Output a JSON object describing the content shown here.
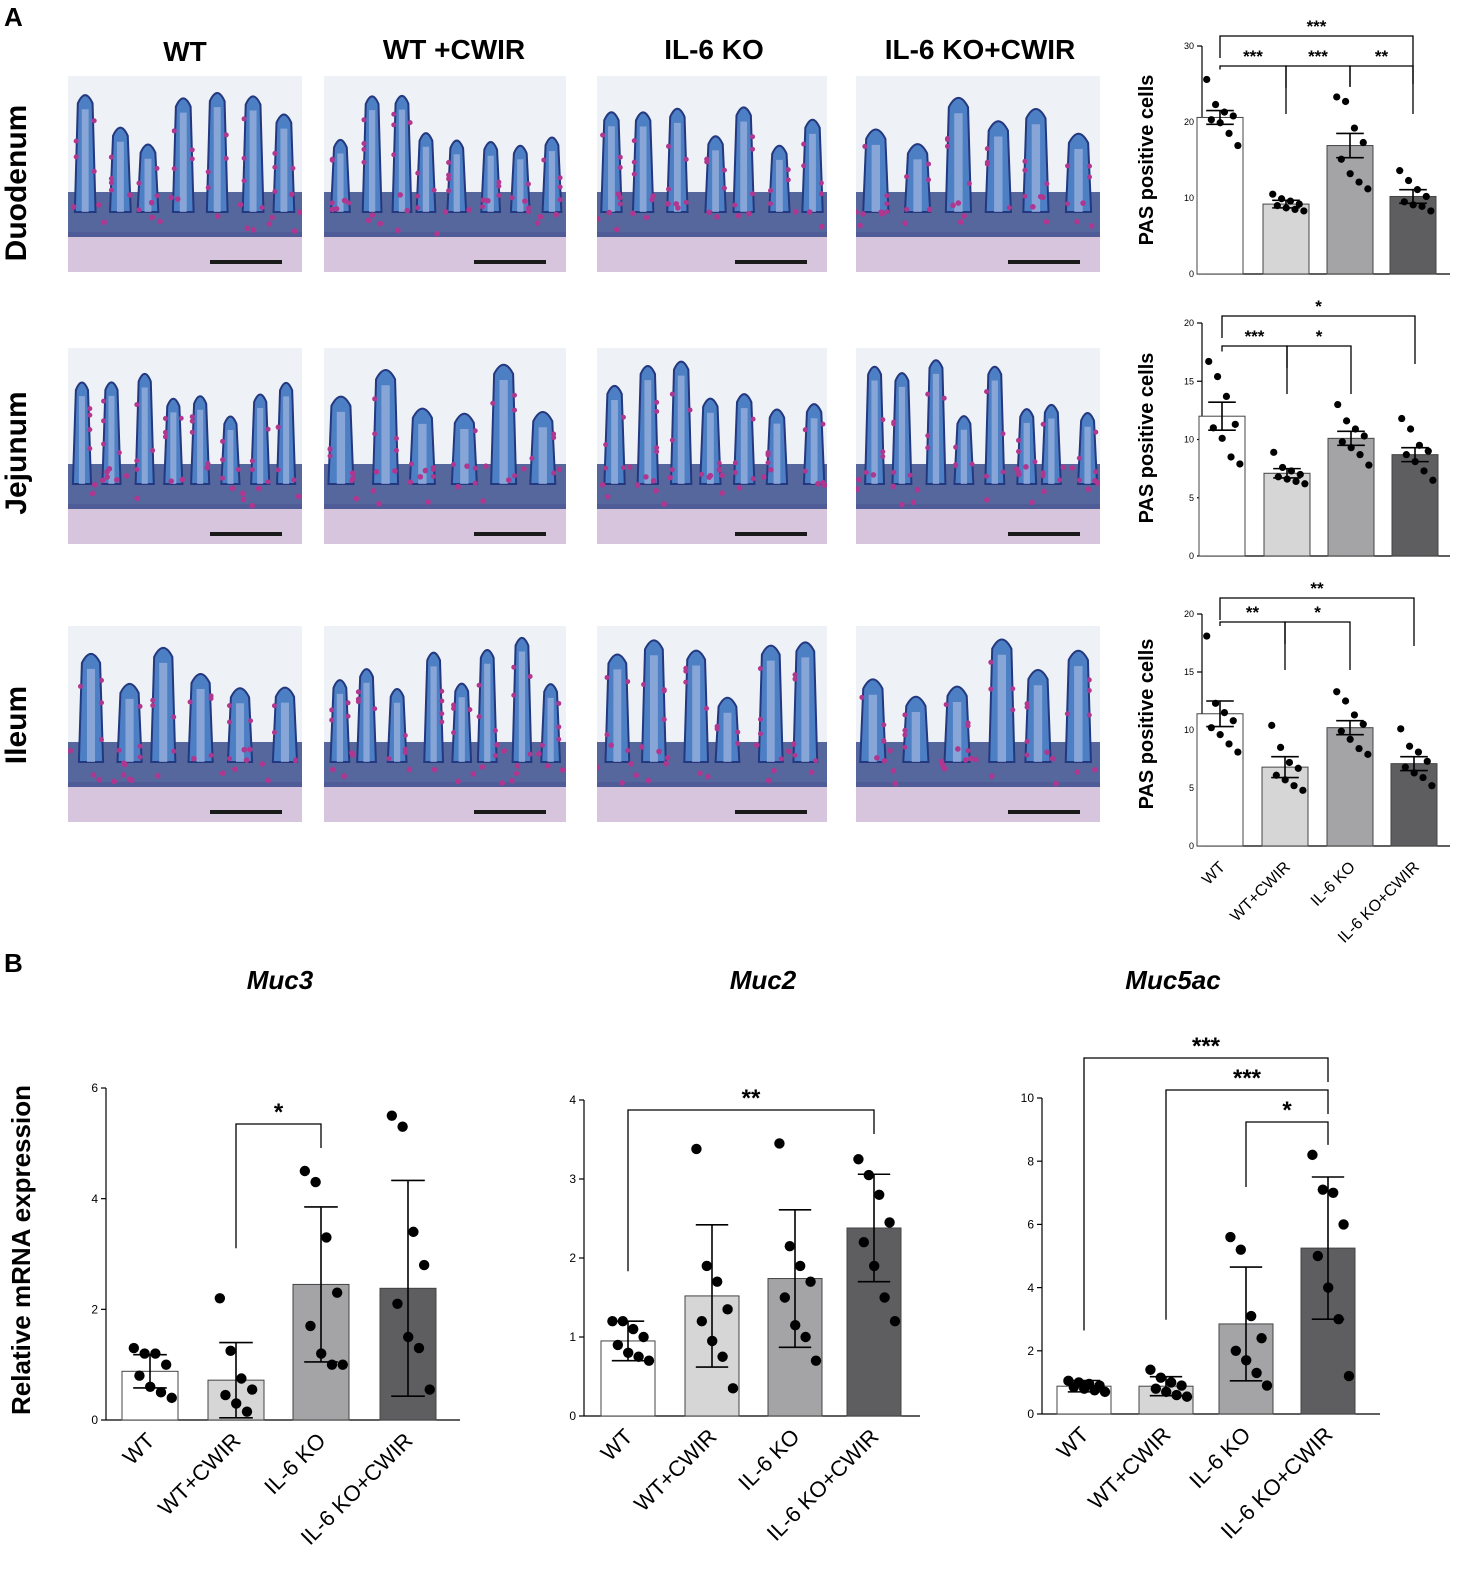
{
  "panel_labels": [
    "A",
    "B"
  ],
  "histology": {
    "columns": [
      "WT",
      "WT +CWIR",
      "IL-6 KO",
      "IL-6 KO+CWIR"
    ],
    "rows": [
      "Duodenum",
      "Jejunum",
      "Ileum"
    ],
    "colors": {
      "background": "#eef1f6",
      "tissue_blue": "#4d7fc4",
      "tissue_dark": "#23387f",
      "goblet_magenta": "#b0378f",
      "lamina": "#c8a9cf"
    }
  },
  "chart_data": [
    {
      "type": "bar",
      "panel": "A",
      "tissue": "Duodenum",
      "ylabel": "PAS positive cells",
      "ylim": [
        0,
        30
      ],
      "yticks": [
        0,
        10,
        20,
        30
      ],
      "categories": [
        "WT",
        "WT+CWIR",
        "IL-6 KO",
        "IL-6 KO+CWIR"
      ],
      "values": [
        20.6,
        9.2,
        16.9,
        10.2
      ],
      "errors": [
        0.9,
        0.5,
        1.6,
        0.9
      ],
      "error_type": "SEM",
      "points": [
        [
          25.6,
          22.3,
          21.3,
          20.8,
          20.3,
          19.9,
          18.5,
          16.9
        ],
        [
          10.5,
          9.9,
          9.6,
          9.2,
          9.0,
          8.7,
          8.5,
          8.3
        ],
        [
          23.3,
          22.7,
          19.2,
          17.3,
          15.1,
          13.2,
          12.1,
          11.2
        ],
        [
          13.6,
          12.3,
          11.1,
          10.2,
          9.5,
          9.1,
          8.9,
          8.3
        ]
      ],
      "significance": [
        {
          "pair": [
            0,
            3
          ],
          "label": "***"
        },
        {
          "pair": [
            0,
            1
          ],
          "label": "***"
        },
        {
          "pair": [
            1,
            2
          ],
          "label": "***"
        },
        {
          "pair": [
            2,
            3
          ],
          "label": "**"
        }
      ]
    },
    {
      "type": "bar",
      "panel": "A",
      "tissue": "Jejunum",
      "ylabel": "PAS positive cells",
      "ylim": [
        0,
        20
      ],
      "yticks": [
        0,
        5,
        10,
        15,
        20
      ],
      "categories": [
        "WT",
        "WT+CWIR",
        "IL-6 KO",
        "IL-6 KO+CWIR"
      ],
      "values": [
        12.0,
        7.1,
        10.1,
        8.7
      ],
      "errors": [
        1.2,
        0.4,
        0.6,
        0.6
      ],
      "error_type": "SEM",
      "points": [
        [
          16.7,
          15.4,
          13.7,
          11.3,
          11.0,
          10.1,
          8.5,
          7.9
        ],
        [
          8.9,
          7.6,
          7.3,
          7.0,
          6.8,
          6.6,
          6.4,
          6.2
        ],
        [
          13.0,
          11.6,
          10.9,
          10.3,
          9.8,
          9.3,
          8.7,
          7.8
        ],
        [
          11.8,
          10.9,
          9.5,
          9.0,
          8.7,
          8.1,
          7.3,
          6.5
        ]
      ],
      "significance": [
        {
          "pair": [
            0,
            3
          ],
          "label": "*"
        },
        {
          "pair": [
            0,
            1
          ],
          "label": "***"
        },
        {
          "pair": [
            1,
            2
          ],
          "label": "*"
        }
      ]
    },
    {
      "type": "bar",
      "panel": "A",
      "tissue": "Ileum",
      "ylabel": "PAS positive cells",
      "ylim": [
        0,
        20
      ],
      "yticks": [
        0,
        5,
        10,
        15,
        20
      ],
      "categories": [
        "WT",
        "WT+CWIR",
        "IL-6 KO",
        "IL-6 KO+CWIR"
      ],
      "values": [
        11.4,
        6.8,
        10.2,
        7.1
      ],
      "errors": [
        1.1,
        0.9,
        0.6,
        0.6
      ],
      "error_type": "SEM",
      "points": [
        [
          18.1,
          12.3,
          11.5,
          10.8,
          10.2,
          9.6,
          8.8,
          8.1
        ],
        [
          10.4,
          8.5,
          7.2,
          6.7,
          6.1,
          5.7,
          5.2,
          4.8
        ],
        [
          13.3,
          12.5,
          11.3,
          10.5,
          9.9,
          9.2,
          8.4,
          7.9
        ],
        [
          10.1,
          8.6,
          8.1,
          7.3,
          6.8,
          6.3,
          5.9,
          5.2
        ]
      ],
      "significance": [
        {
          "pair": [
            0,
            3
          ],
          "label": "**"
        },
        {
          "pair": [
            0,
            1
          ],
          "label": "**"
        },
        {
          "pair": [
            1,
            2
          ],
          "label": "*"
        }
      ]
    },
    {
      "type": "bar",
      "panel": "B",
      "title": "Muc3",
      "ylabel": "Relative mRNA expression",
      "ylim": [
        0,
        6
      ],
      "yticks": [
        0,
        2,
        4,
        6
      ],
      "categories": [
        "WT",
        "WT+CWIR",
        "IL-6 KO",
        "IL-6 KO+CWIR"
      ],
      "values": [
        0.88,
        0.72,
        2.45,
        2.38
      ],
      "errors": [
        0.3,
        0.68,
        1.4,
        1.95
      ],
      "error_type": "SD",
      "points": [
        [
          1.3,
          1.2,
          1.2,
          1.0,
          0.8,
          0.6,
          0.5,
          0.4
        ],
        [
          2.2,
          1.25,
          0.75,
          0.55,
          0.45,
          0.3,
          0.15
        ],
        [
          4.5,
          4.3,
          3.3,
          2.3,
          1.7,
          1.2,
          1.0,
          1.0
        ],
        [
          5.5,
          5.3,
          3.4,
          2.8,
          2.1,
          1.5,
          1.3,
          0.55
        ]
      ],
      "significance": [
        {
          "pair": [
            1,
            2
          ],
          "label": "*"
        }
      ]
    },
    {
      "type": "bar",
      "panel": "B",
      "title": "Muc2",
      "ylabel": "",
      "ylim": [
        0,
        4
      ],
      "yticks": [
        0,
        1,
        2,
        3,
        4
      ],
      "categories": [
        "WT",
        "WT+CWIR",
        "IL-6 KO",
        "IL-6 KO+CWIR"
      ],
      "values": [
        0.95,
        1.52,
        1.74,
        2.38
      ],
      "errors": [
        0.25,
        0.9,
        0.87,
        0.68
      ],
      "error_type": "SD",
      "points": [
        [
          1.2,
          1.2,
          1.1,
          1.0,
          0.9,
          0.8,
          0.75,
          0.7
        ],
        [
          3.38,
          1.9,
          1.7,
          1.35,
          1.2,
          0.95,
          0.75,
          0.35
        ],
        [
          3.45,
          2.15,
          1.9,
          1.7,
          1.5,
          1.15,
          1.0,
          0.7
        ],
        [
          3.25,
          3.05,
          2.8,
          2.45,
          2.2,
          1.9,
          1.5,
          1.2
        ]
      ],
      "significance": [
        {
          "pair": [
            0,
            3
          ],
          "label": "**"
        }
      ]
    },
    {
      "type": "bar",
      "panel": "B",
      "title": "Muc5ac",
      "ylabel": "",
      "ylim": [
        0,
        10
      ],
      "yticks": [
        0,
        2,
        4,
        6,
        8,
        10
      ],
      "categories": [
        "WT",
        "WT+CWIR",
        "IL-6 KO",
        "IL-6 KO+CWIR"
      ],
      "values": [
        0.88,
        0.88,
        2.85,
        5.25
      ],
      "errors": [
        0.18,
        0.3,
        1.8,
        2.25
      ],
      "error_type": "SD",
      "points": [
        [
          1.05,
          1.0,
          0.95,
          0.9,
          0.85,
          0.8,
          0.75,
          0.7
        ],
        [
          1.4,
          1.15,
          1.0,
          0.9,
          0.8,
          0.7,
          0.6,
          0.55
        ],
        [
          5.6,
          5.2,
          3.1,
          2.4,
          2.0,
          1.7,
          1.3,
          0.9
        ],
        [
          8.2,
          7.1,
          7.0,
          6.0,
          5.0,
          4.0,
          3.0,
          1.2
        ]
      ],
      "significance": [
        {
          "pair": [
            0,
            3
          ],
          "label": "***"
        },
        {
          "pair": [
            1,
            3
          ],
          "label": "***"
        },
        {
          "pair": [
            2,
            3
          ],
          "label": "*"
        }
      ]
    }
  ],
  "bar_colors": [
    "#ffffff",
    "#d6d6d6",
    "#a4a4a6",
    "#5e5e60"
  ]
}
